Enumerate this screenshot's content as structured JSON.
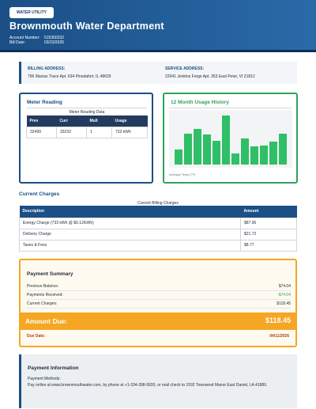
{
  "header": {
    "badge": "WATER UTILITY",
    "title": "Brownmouth Water Department",
    "account_label": "Account Number:",
    "account_number": "515360332",
    "bill_date_label": "Bill Date:",
    "bill_date": "03/23/2026"
  },
  "addresses": {
    "billing_label": "BILLING ADDRESS:",
    "billing_value": "796 Macias Trace Apt. 634 Pinedafort, IL 48629",
    "service_label": "SERVICE ADDRESS:",
    "service_value": "22941 Jenkins Forge Apt. 353 East Peter, VI 21812"
  },
  "meter": {
    "heading": "Meter Reading",
    "caption": "Meter Reading Data",
    "columns": [
      "Prev",
      "Curr",
      "Mult",
      "Usage"
    ],
    "row": [
      "32499",
      "33232",
      "1",
      "733 kWh"
    ]
  },
  "usage_history": {
    "heading": "12 Month Usage History",
    "caption": "Average Temp (°F)"
  },
  "chart_data": {
    "type": "bar",
    "title": "12 Month Usage History",
    "values": [
      30,
      62,
      72,
      60,
      48,
      98,
      22,
      52,
      36,
      38,
      46,
      62
    ],
    "ylim": [
      0,
      100
    ],
    "color": "#2fbf66"
  },
  "charges": {
    "heading": "Current Charges",
    "caption": "Current Billing Charges",
    "columns": [
      "Description",
      "Amount"
    ],
    "rows": [
      [
        "Energy Charge (733 kWh @ $0.12/kWh)",
        "$87.96"
      ],
      [
        "Delivery Charge",
        "$21.72"
      ],
      [
        "Taxes & Fees",
        "$8.77"
      ]
    ]
  },
  "summary": {
    "heading": "Payment Summary",
    "previous_label": "Previous Balance:",
    "previous_value": "$74.04",
    "received_label": "Payments Received:",
    "received_value": "-$74.04",
    "current_label": "Current Charges:",
    "current_value": "$118.45",
    "amount_due_label": "Amount Due:",
    "amount_due_value": "$118.45",
    "due_date_label": "Due Date:",
    "due_date_value": "04/11/2026"
  },
  "payment_info": {
    "heading": "Payment Information",
    "methods_label": "Payment Methods:",
    "methods_text": "Pay online at www.brownmouthwater.com, by phone at +1-334-398-9930, or mail check to 1592 Townsend Manor East Daniel, LA 41880."
  },
  "colors": {
    "primary": "#1b4f86",
    "green": "#2fbf66",
    "orange": "#f5a623",
    "due_red": "#b7410e"
  }
}
